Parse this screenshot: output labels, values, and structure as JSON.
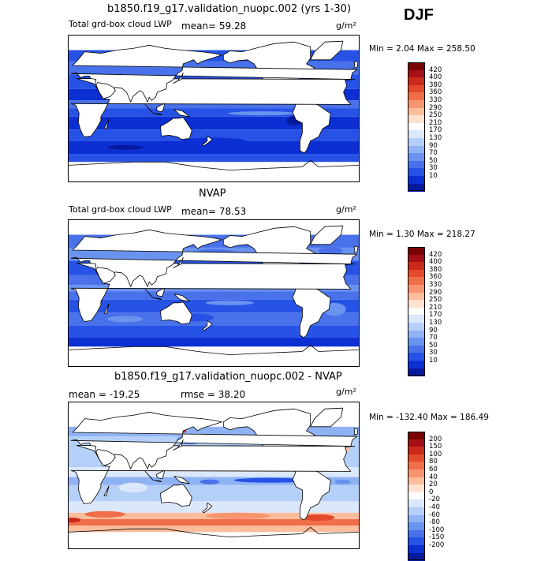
{
  "season": "DJF",
  "panels": [
    {
      "id": "model",
      "title": "b1850.f19_g17.validation_nuopc.002 (yrs 1-30)",
      "left_label": "Total grd-box cloud LWP",
      "stat_text": "mean=  59.28",
      "units": "g/m²",
      "minmax": "Min =   2.04 Max = 258.50",
      "colorbar": {
        "labels": [
          "420",
          "400",
          "380",
          "360",
          "330",
          "290",
          "250",
          "210",
          "170",
          "130",
          "90",
          "70",
          "50",
          "30",
          "10"
        ],
        "colors": [
          "#7a0403",
          "#a50f15",
          "#cb2a1a",
          "#e34a2b",
          "#f06e49",
          "#f7956f",
          "#fbbd9c",
          "#fee2cf",
          "#ffffff",
          "#dbe8fb",
          "#b5d0f8",
          "#8fb2f4",
          "#6a92ef",
          "#4871ea",
          "#2752e6",
          "#0c2fd4",
          "#071a9e"
        ]
      }
    },
    {
      "id": "obs",
      "title": "NVAP",
      "left_label": "Total grd-box cloud LWP",
      "stat_text": "mean=  78.53",
      "units": "g/m²",
      "minmax": "Min =   1.30 Max = 218.27",
      "colorbar": {
        "labels": [
          "420",
          "400",
          "380",
          "360",
          "330",
          "290",
          "250",
          "210",
          "170",
          "130",
          "90",
          "70",
          "50",
          "30",
          "10"
        ],
        "colors": [
          "#7a0403",
          "#a50f15",
          "#cb2a1a",
          "#e34a2b",
          "#f06e49",
          "#f7956f",
          "#fbbd9c",
          "#fee2cf",
          "#ffffff",
          "#dbe8fb",
          "#b5d0f8",
          "#8fb2f4",
          "#6a92ef",
          "#4871ea",
          "#2752e6",
          "#0c2fd4",
          "#071a9e"
        ]
      }
    },
    {
      "id": "diff",
      "title": "b1850.f19_g17.validation_nuopc.002 - NVAP",
      "left_label": "mean = -19.25",
      "stat_text": "rmse =  38.20",
      "units": "g/m²",
      "minmax": "Min = -132.40 Max = 186.49",
      "colorbar": {
        "labels": [
          "200",
          "150",
          "100",
          "80",
          "60",
          "40",
          "20",
          "0",
          "-20",
          "-40",
          "-60",
          "-80",
          "-100",
          "-150",
          "-200"
        ],
        "colors": [
          "#7a0403",
          "#a50f15",
          "#cb2a1a",
          "#e34a2b",
          "#f06e49",
          "#f7956f",
          "#fbbd9c",
          "#fee2cf",
          "#ffffff",
          "#dbe8fb",
          "#b5d0f8",
          "#8fb2f4",
          "#6a92ef",
          "#4871ea",
          "#2752e6",
          "#0c2fd4",
          "#071a9e"
        ]
      }
    }
  ],
  "chart_data": [
    {
      "type": "heatmap",
      "title": "b1850.f19_g17.validation_nuopc.002 (yrs 1-30)",
      "variable": "Total grd-box cloud LWP",
      "units": "g/m^2",
      "season": "DJF",
      "mean": 59.28,
      "min": 2.04,
      "max": 258.5,
      "contour_levels": [
        10,
        30,
        50,
        70,
        90,
        130,
        170,
        210,
        250,
        290,
        330,
        360,
        380,
        400,
        420
      ]
    },
    {
      "type": "heatmap",
      "title": "NVAP",
      "variable": "Total grd-box cloud LWP",
      "units": "g/m^2",
      "season": "DJF",
      "mean": 78.53,
      "min": 1.3,
      "max": 218.27,
      "contour_levels": [
        10,
        30,
        50,
        70,
        90,
        130,
        170,
        210,
        250,
        290,
        330,
        360,
        380,
        400,
        420
      ]
    },
    {
      "type": "heatmap",
      "title": "b1850.f19_g17.validation_nuopc.002 - NVAP",
      "units": "g/m^2",
      "season": "DJF",
      "mean": -19.25,
      "rmse": 38.2,
      "min": -132.4,
      "max": 186.49,
      "contour_levels": [
        -200,
        -150,
        -100,
        -80,
        -60,
        -40,
        -20,
        0,
        20,
        40,
        60,
        80,
        100,
        150,
        200
      ]
    }
  ]
}
